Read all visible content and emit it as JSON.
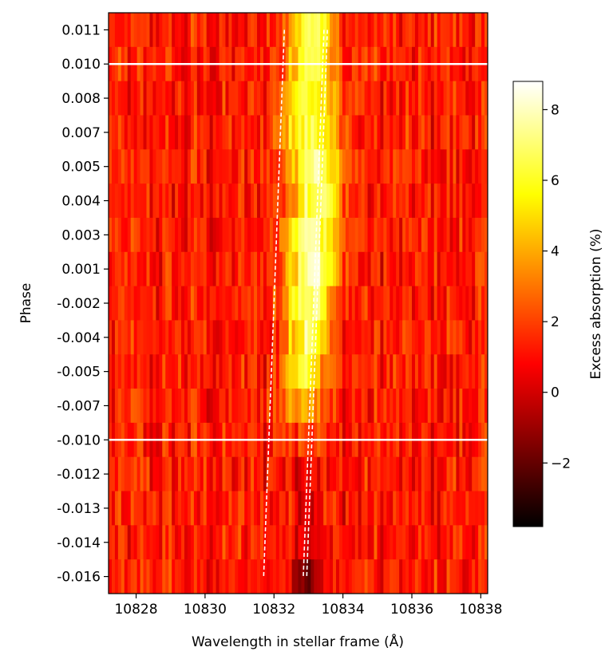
{
  "chart_data": {
    "type": "heatmap",
    "colormap": "hot",
    "xlabel": "Wavelength in stellar frame (Å)",
    "ylabel": "Phase",
    "colorbar_label": "Excess absorption (%)",
    "xlim": [
      10827.2,
      10838.2
    ],
    "x_ticks": [
      10828,
      10830,
      10832,
      10834,
      10836,
      10838
    ],
    "y_tick_labels": [
      "0.011",
      "0.010",
      "0.008",
      "0.007",
      "0.005",
      "0.004",
      "0.003",
      "0.001",
      "-0.002",
      "-0.004",
      "-0.005",
      "-0.007",
      "-0.010",
      "-0.012",
      "-0.013",
      "-0.014",
      "-0.016"
    ],
    "colorbar_range": [
      -3.8,
      8.8
    ],
    "colorbar_ticks": [
      -2,
      0,
      2,
      4,
      6,
      8
    ],
    "colorbar_tick_labels": [
      "−2",
      "0",
      "2",
      "4",
      "6",
      "8"
    ],
    "phase_limits": [
      0.01,
      -0.01
    ],
    "background_level": 1.2,
    "absorption_profile": [
      {
        "phase": "0.011",
        "peak_center": 10833.1,
        "peak_height": 7.2,
        "peak_width": 0.45
      },
      {
        "phase": "0.010",
        "peak_center": 10833.1,
        "peak_height": 7.0,
        "peak_width": 0.45
      },
      {
        "phase": "0.008",
        "peak_center": 10833.0,
        "peak_height": 6.6,
        "peak_width": 0.55
      },
      {
        "phase": "0.007",
        "peak_center": 10833.0,
        "peak_height": 6.8,
        "peak_width": 0.55
      },
      {
        "phase": "0.005",
        "peak_center": 10833.2,
        "peak_height": 7.4,
        "peak_width": 0.55
      },
      {
        "phase": "0.004",
        "peak_center": 10833.2,
        "peak_height": 7.8,
        "peak_width": 0.5
      },
      {
        "phase": "0.003",
        "peak_center": 10833.1,
        "peak_height": 7.6,
        "peak_width": 0.55
      },
      {
        "phase": "0.001",
        "peak_center": 10833.1,
        "peak_height": 8.2,
        "peak_width": 0.5
      },
      {
        "phase": "-0.002",
        "peak_center": 10833.0,
        "peak_height": 7.6,
        "peak_width": 0.5
      },
      {
        "phase": "-0.004",
        "peak_center": 10833.0,
        "peak_height": 7.0,
        "peak_width": 0.45
      },
      {
        "phase": "-0.005",
        "peak_center": 10832.9,
        "peak_height": 6.2,
        "peak_width": 0.45
      },
      {
        "phase": "-0.007",
        "peak_center": 10832.8,
        "peak_height": 4.6,
        "peak_width": 0.45
      },
      {
        "phase": "-0.010",
        "peak_center": 10832.9,
        "peak_height": 2.4,
        "peak_width": 0.4
      },
      {
        "phase": "-0.012",
        "peak_center": 10833.0,
        "peak_height": 0.8,
        "peak_width": 0.4
      },
      {
        "phase": "-0.013",
        "peak_center": 10833.0,
        "peak_height": 0.6,
        "peak_width": 0.4
      },
      {
        "phase": "-0.014",
        "peak_center": 10833.0,
        "peak_height": 0.5,
        "peak_width": 0.4
      },
      {
        "phase": "-0.016",
        "peak_center": 10833.0,
        "peak_height": -1.5,
        "peak_width": 0.35
      }
    ],
    "dashed_tracks": [
      {
        "phase_start": "0.011",
        "x_start": 10832.3,
        "phase_end": "-0.016",
        "x_end": 10831.7
      },
      {
        "phase_start": "0.011",
        "x_start": 10833.45,
        "phase_end": "-0.016",
        "x_end": 10832.85
      },
      {
        "phase_start": "0.011",
        "x_start": 10833.55,
        "phase_end": "-0.016",
        "x_end": 10832.95
      }
    ]
  }
}
